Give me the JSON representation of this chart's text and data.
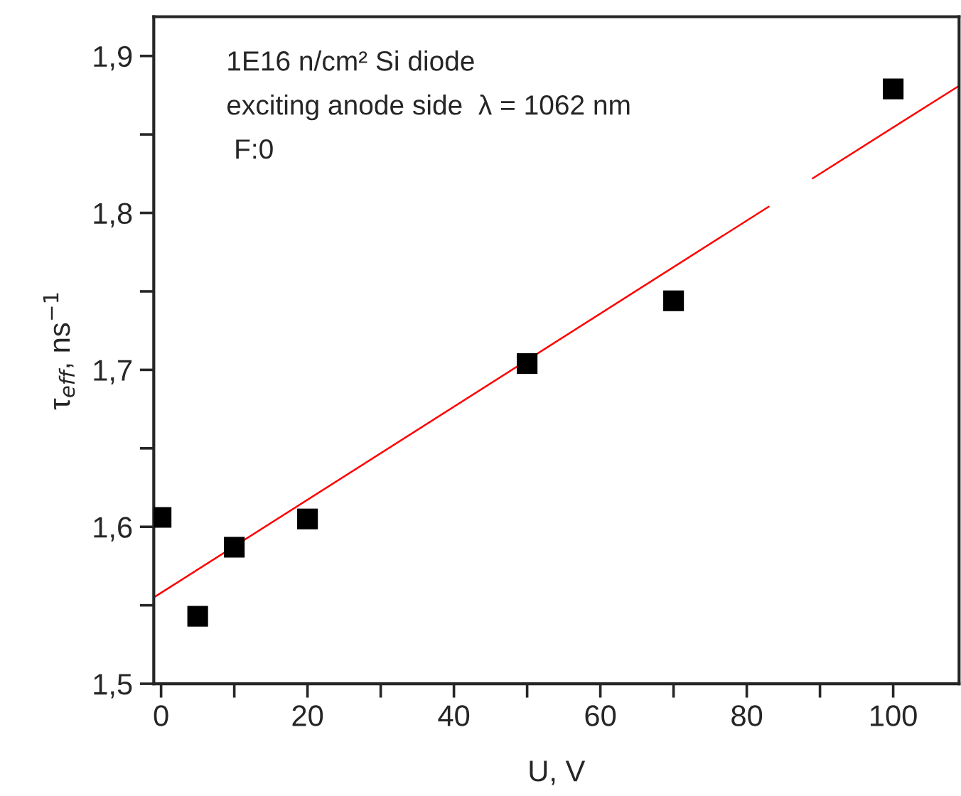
{
  "chart_data": {
    "type": "scatter",
    "xlabel": "U, V",
    "ylabel": "τ$_{eff}$, ns$^{−1}$",
    "annotations": [
      "1E16 n/cm² Si diode",
      "exciting anode side  λ = 1062 nm",
      " F:0"
    ],
    "series": [
      {
        "color": "#000000",
        "marker": "square",
        "x": [
          0,
          5,
          10,
          20,
          50,
          70,
          100
        ],
        "values": [
          1.606,
          1.543,
          1.587,
          1.605,
          1.704,
          1.744,
          1.879
        ]
      },
      {
        "type": "line",
        "color": "#ff0000",
        "marker": "none",
        "line_style": "solid",
        "x": [
          -1,
          83,
          86,
          89,
          109
        ],
        "values": [
          1.555,
          1.804,
          null,
          1.822,
          1.881
        ]
      }
    ],
    "xlim": [
      -1,
      109
    ],
    "ylim": [
      1.5,
      1.925
    ],
    "xticks": [
      0,
      {
        "value": 10,
        "label": null
      },
      20,
      {
        "value": 30,
        "label": null
      },
      40,
      {
        "value": 50,
        "label": null
      },
      60,
      {
        "value": 70,
        "label": null
      },
      80,
      {
        "value": 90,
        "label": null
      },
      100
    ],
    "yticks": [
      {
        "value": 1.5,
        "label": "1,5"
      },
      {
        "value": 1.55,
        "label": null
      },
      {
        "value": 1.6,
        "label": "1,6"
      },
      {
        "value": 1.65,
        "label": null
      },
      {
        "value": 1.7,
        "label": "1,7"
      },
      {
        "value": 1.75,
        "label": null
      },
      {
        "value": 1.8,
        "label": "1,8"
      },
      {
        "value": 1.85,
        "label": null
      },
      {
        "value": 1.9,
        "label": "1,9"
      }
    ],
    "grid": false,
    "legend": false
  }
}
